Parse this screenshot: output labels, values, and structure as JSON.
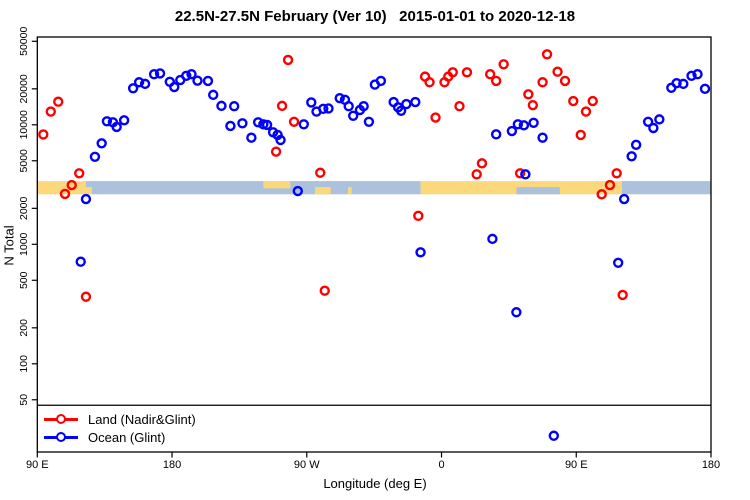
{
  "title": "22.5N-27.5N February (Ver 10)   2015-01-01 to 2020-12-18",
  "axes": {
    "x_label": "Longitude (deg E)",
    "y_label": "N Total"
  },
  "legend": {
    "items": [
      {
        "label": "Land (Nadir&Glint)",
        "color": "#ff0000"
      },
      {
        "label": "Ocean (Glint)",
        "color": "#0000ff"
      }
    ]
  },
  "colors": {
    "land_point": "#ff0000",
    "ocean_point": "#0000ff",
    "land_band": "#FBD87B",
    "ocean_band": "#ACC1DC",
    "axis": "#000000"
  },
  "chart_data": {
    "type": "scatter",
    "x_domain": [
      90,
      540
    ],
    "y_domain_log": [
      18,
      54000
    ],
    "y_scale": "log10",
    "grid": "off",
    "legend_position": "bottom-left",
    "x_ticks": [
      {
        "label": "90 E",
        "lon": 90
      },
      {
        "label": "180",
        "lon": 180
      },
      {
        "label": "90 W",
        "lon": 270
      },
      {
        "label": "0",
        "lon": 360
      },
      {
        "label": "90 E",
        "lon": 450
      },
      {
        "label": "180",
        "lon": 540
      }
    ],
    "y_ticks": [
      {
        "label": "50000",
        "value": 50000
      },
      {
        "label": "20000",
        "value": 20000
      },
      {
        "label": "10000",
        "value": 10000
      },
      {
        "label": "5000",
        "value": 5000
      },
      {
        "label": "2000",
        "value": 2000
      },
      {
        "label": "1000",
        "value": 1000
      },
      {
        "label": "500",
        "value": 500
      },
      {
        "label": "200",
        "value": 200
      },
      {
        "label": "100",
        "value": 100
      },
      {
        "label": "50",
        "value": 50
      }
    ],
    "threshold_line_value": 45,
    "surface_band": {
      "value_range": [
        2620,
        3380
      ],
      "segments": [
        {
          "start_lon": 90,
          "end_lon": 122.5,
          "surface": "land"
        },
        {
          "start_lon": 122.5,
          "end_lon": 346,
          "surface": "ocean"
        },
        {
          "start_lon": 346,
          "end_lon": 480.5,
          "surface": "land"
        },
        {
          "start_lon": 480.5,
          "end_lon": 540,
          "surface": "ocean"
        }
      ],
      "patches": [
        {
          "start_lon": 121,
          "end_lon": 126.5,
          "surface": "land",
          "band_part": "lower"
        },
        {
          "start_lon": 241,
          "end_lon": 259,
          "surface": "land",
          "band_part": "upper"
        },
        {
          "start_lon": 275.5,
          "end_lon": 286,
          "surface": "land",
          "band_part": "lower"
        },
        {
          "start_lon": 297.5,
          "end_lon": 300,
          "surface": "land",
          "band_part": "lower"
        },
        {
          "start_lon": 410,
          "end_lon": 439,
          "surface": "ocean",
          "band_part": "lower"
        },
        {
          "start_lon": 481,
          "end_lon": 484.5,
          "surface": "ocean",
          "band_part": "full"
        }
      ]
    },
    "series": [
      {
        "name": "Land (Nadir&Glint)",
        "color": "#ff0000",
        "points": [
          [
            94,
            8300
          ],
          [
            99,
            12900
          ],
          [
            104,
            15600
          ],
          [
            108.5,
            2640
          ],
          [
            113,
            3130
          ],
          [
            118,
            3930
          ],
          [
            122.5,
            364
          ],
          [
            249.5,
            5960
          ],
          [
            253.5,
            14400
          ],
          [
            257.5,
            34900
          ],
          [
            261.5,
            10600
          ],
          [
            279,
            3970
          ],
          [
            282,
            409
          ],
          [
            344.5,
            1730
          ],
          [
            349,
            25300
          ],
          [
            352,
            22700
          ],
          [
            356,
            11500
          ],
          [
            362,
            22700
          ],
          [
            364.5,
            25300
          ],
          [
            367.5,
            27500
          ],
          [
            372,
            14300
          ],
          [
            377,
            27500
          ],
          [
            383.5,
            3850
          ],
          [
            387,
            4760
          ],
          [
            392.5,
            26500
          ],
          [
            396.5,
            23300
          ],
          [
            401.5,
            32100
          ],
          [
            412.5,
            3930
          ],
          [
            418,
            18000
          ],
          [
            421,
            14600
          ],
          [
            427.5,
            22700
          ],
          [
            430.5,
            38900
          ],
          [
            437.5,
            27800
          ],
          [
            442.5,
            23300
          ],
          [
            448,
            15800
          ],
          [
            453,
            8220
          ],
          [
            456.5,
            12900
          ],
          [
            461,
            15800
          ],
          [
            467,
            2620
          ],
          [
            472.5,
            3130
          ],
          [
            477,
            3930
          ],
          [
            481,
            377
          ]
        ]
      },
      {
        "name": "Ocean (Glint)",
        "color": "#0000ff",
        "points": [
          [
            119,
            715
          ],
          [
            122.5,
            2390
          ],
          [
            128.5,
            5400
          ],
          [
            133,
            7000
          ],
          [
            136.5,
            10700
          ],
          [
            140.5,
            10500
          ],
          [
            143,
            9600
          ],
          [
            148,
            10900
          ],
          [
            154,
            20200
          ],
          [
            158,
            22700
          ],
          [
            162,
            22000
          ],
          [
            168,
            26500
          ],
          [
            172,
            26900
          ],
          [
            178.5,
            22900
          ],
          [
            181.5,
            20700
          ],
          [
            185.5,
            23700
          ],
          [
            189.5,
            25700
          ],
          [
            193,
            26500
          ],
          [
            197,
            23400
          ],
          [
            204,
            23300
          ],
          [
            207.5,
            17800
          ],
          [
            213,
            14400
          ],
          [
            219,
            9780
          ],
          [
            221.5,
            14300
          ],
          [
            227,
            10300
          ],
          [
            233,
            7800
          ],
          [
            237.5,
            10500
          ],
          [
            241,
            10100
          ],
          [
            243.5,
            9970
          ],
          [
            247.5,
            8660
          ],
          [
            250.5,
            8230
          ],
          [
            252.5,
            7460
          ],
          [
            264,
            2790
          ],
          [
            268,
            10100
          ],
          [
            273,
            15400
          ],
          [
            276.5,
            12900
          ],
          [
            281,
            13600
          ],
          [
            284.5,
            13700
          ],
          [
            292,
            16700
          ],
          [
            295.5,
            16200
          ],
          [
            298,
            14300
          ],
          [
            301,
            11900
          ],
          [
            305.5,
            13300
          ],
          [
            308,
            14300
          ],
          [
            311.5,
            10600
          ],
          [
            315.5,
            21700
          ],
          [
            319.5,
            23300
          ],
          [
            328,
            15500
          ],
          [
            331,
            14000
          ],
          [
            333,
            13100
          ],
          [
            336.5,
            14900
          ],
          [
            342.5,
            15500
          ],
          [
            346,
            857
          ],
          [
            394,
            1110
          ],
          [
            396.5,
            8320
          ],
          [
            407,
            8870
          ],
          [
            410,
            270
          ],
          [
            411,
            10100
          ],
          [
            415,
            9900
          ],
          [
            416,
            3850
          ],
          [
            421.5,
            10400
          ],
          [
            427.5,
            7800
          ],
          [
            435,
            25
          ],
          [
            478,
            700
          ],
          [
            482,
            2390
          ],
          [
            487,
            5450
          ],
          [
            490,
            6800
          ],
          [
            498,
            10600
          ],
          [
            501.5,
            9400
          ],
          [
            505.5,
            11100
          ],
          [
            513.5,
            20400
          ],
          [
            517,
            22300
          ],
          [
            521.5,
            22000
          ],
          [
            527,
            25700
          ],
          [
            531,
            26500
          ],
          [
            536,
            20000
          ]
        ]
      }
    ]
  }
}
